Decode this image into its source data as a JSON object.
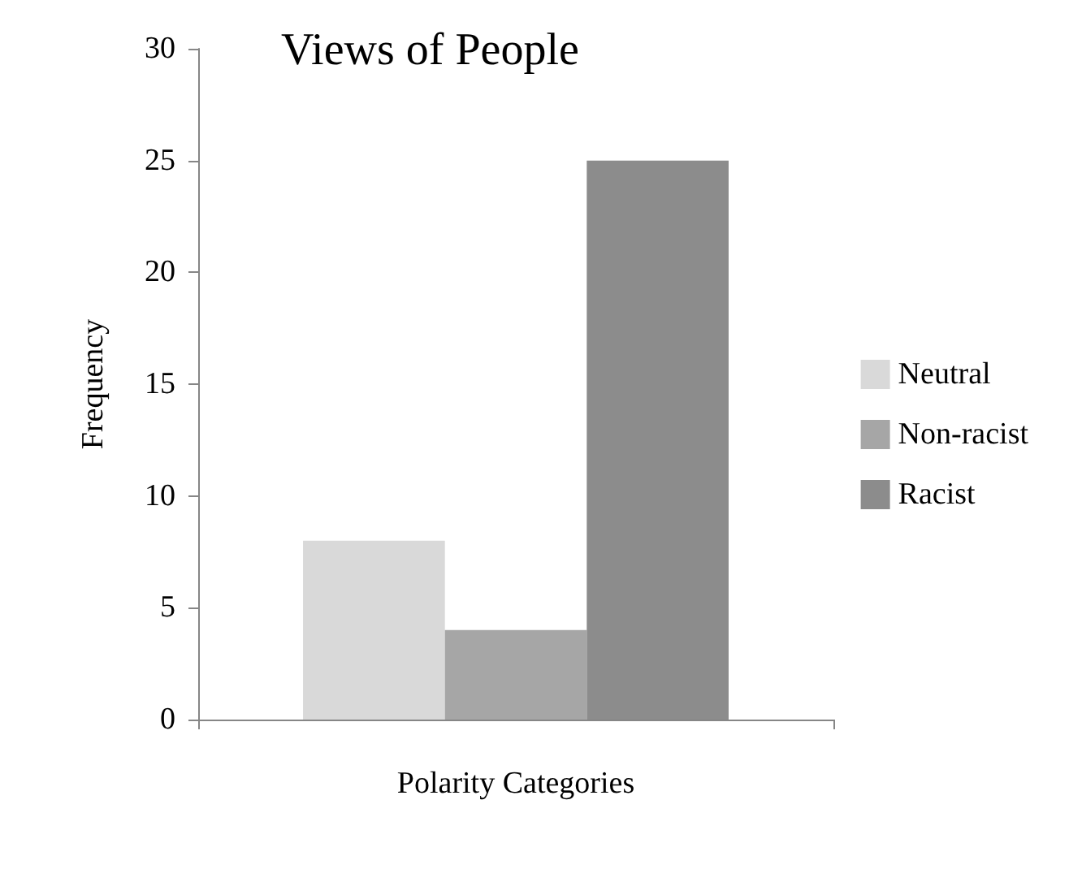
{
  "chart_data": {
    "type": "bar",
    "title": "Views of People",
    "xlabel": "Polarity Categories",
    "ylabel": "Frequency",
    "categories": [
      null
    ],
    "series": [
      {
        "name": "Neutral",
        "color": "#d9d9d9",
        "values": [
          8
        ]
      },
      {
        "name": "Non-racist",
        "color": "#a6a6a6",
        "values": [
          4
        ]
      },
      {
        "name": "Racist",
        "color": "#8c8c8c",
        "values": [
          25
        ]
      }
    ],
    "ylim": [
      0,
      30
    ],
    "yticks": [
      0,
      5,
      10,
      15,
      20,
      25,
      30
    ],
    "grid": false,
    "legend": "right"
  }
}
